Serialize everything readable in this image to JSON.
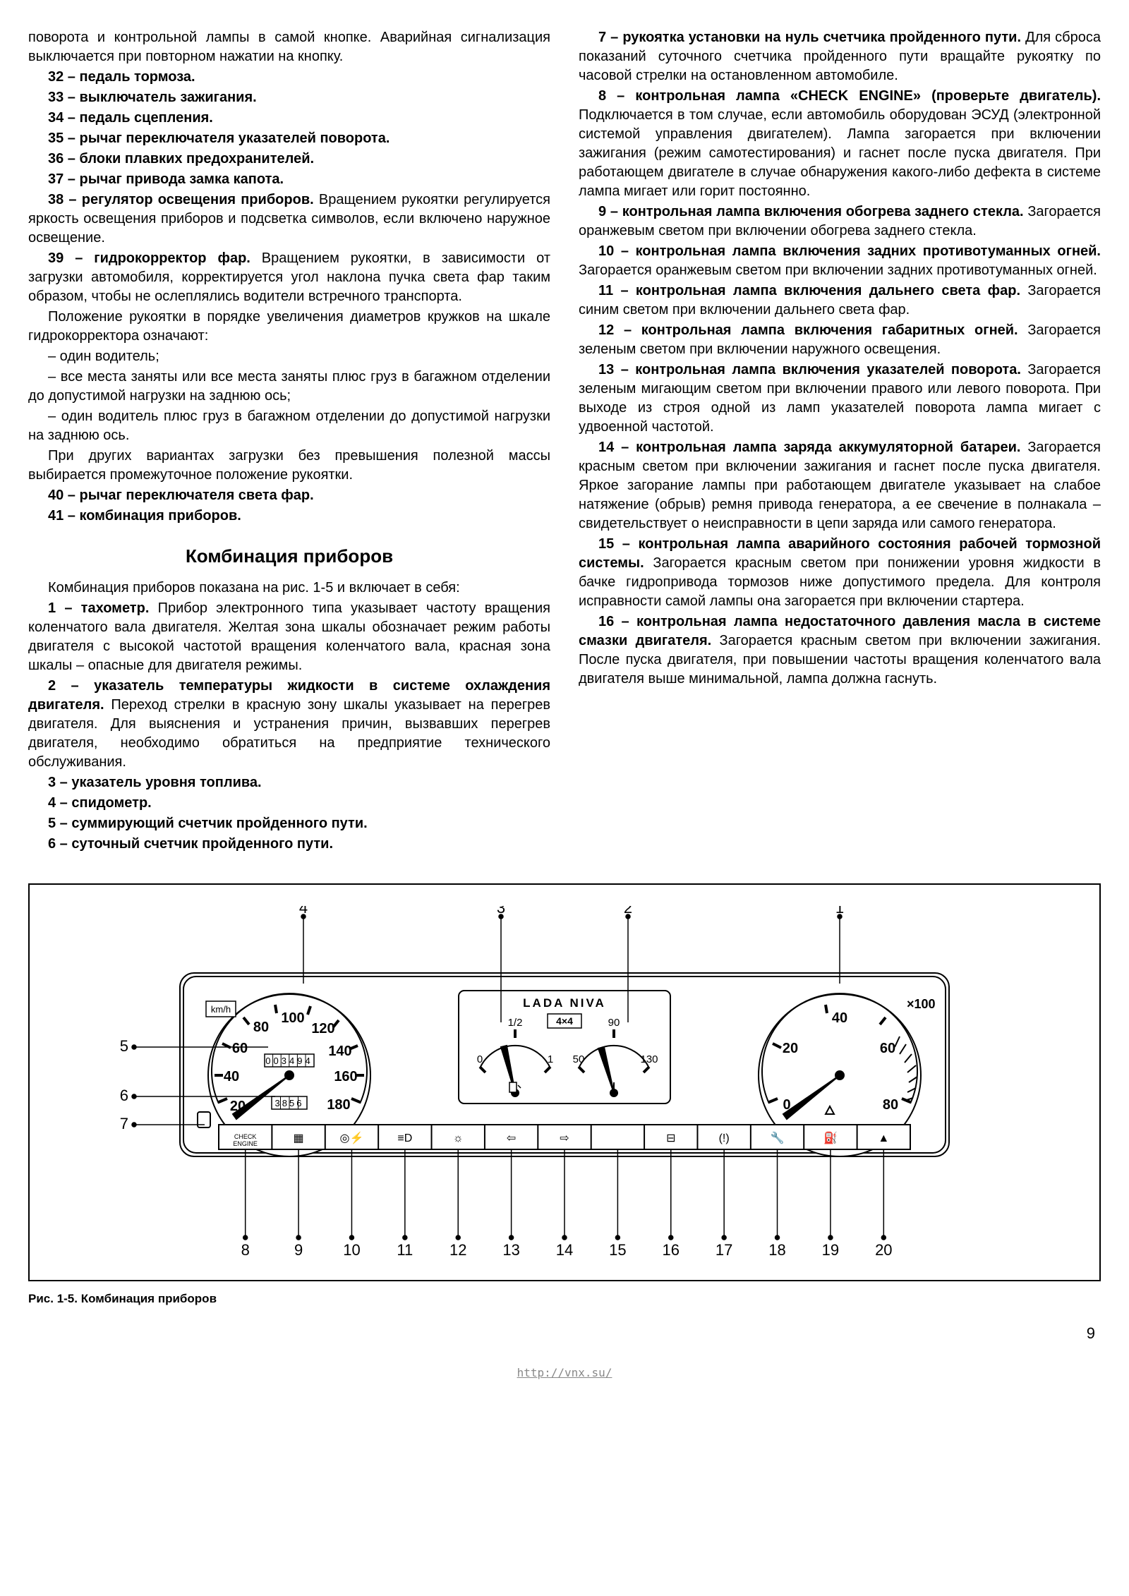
{
  "left_col": {
    "intro_tail": "поворота и контрольной лампы в самой кнопке. Аварийная сигнализация выключается при повторном нажатии на кнопку.",
    "items32_37": [
      "32 – педаль тормоза.",
      "33 – выключатель зажигания.",
      "34 – педаль сцепления.",
      "35 – рычаг переключателя указателей поворота.",
      "36 – блоки плавких предохранителей.",
      "37 – рычаг привода замка капота."
    ],
    "item38_bold": "38 – регулятор освещения приборов.",
    "item38_text": " Вращением рукоятки регулируется яркость освещения приборов и подсветка символов, если включено наружное освещение.",
    "item39_bold": "39 – гидрокорректор фар.",
    "item39_text": " Вращением рукоятки, в зависимости от загрузки автомобиля, корректируется угол наклона пучка света фар таким образом, чтобы не ослеплялись водители встречного транспорта.",
    "item39_p2": "Положение рукоятки в порядке увеличения диаметров кружков на шкале гидрокорректора означают:",
    "item39_l1": "– один водитель;",
    "item39_l2": "– все места заняты или все места заняты плюс груз в багажном отделении до допустимой нагрузки на заднюю ось;",
    "item39_l3": "– один водитель плюс груз в багажном отделении до допустимой нагрузки на заднюю ось.",
    "item39_p3": "При других вариантах загрузки без превышения полезной массы выбирается промежуточное положение рукоятки.",
    "item40": "40 – рычаг переключателя света фар.",
    "item41": "41 – комбинация приборов.",
    "section_title": "Комбинация приборов",
    "section_intro": "Комбинация приборов показана на рис. 1-5 и включает в себя:",
    "n1_bold": "1 – тахометр.",
    "n1_text": " Прибор электронного типа указывает частоту вращения коленчатого вала двигателя. Желтая зона шкалы обозначает режим работы двигателя с высокой частотой вращения коленчатого вала, красная зона шкалы – опасные для двигателя режимы.",
    "n2_bold": "2 – указатель температуры жидкости в системе охлаждения двигателя.",
    "n2_text": " Переход стрелки в красную зону шкалы указывает на перегрев двигателя. Для выяснения и устранения причин, вызвавших перегрев двигателя, необходимо обратиться на предприятие технического обслуживания.",
    "n3": "3 – указатель уровня топлива.",
    "n4": "4 – спидометр.",
    "n5": "5 – суммирующий счетчик пройденного пути.",
    "n6": "6 – суточный счетчик пройденного пути."
  },
  "right_col": {
    "n7_bold": "7 – рукоятка установки на нуль счетчика пройденного пути.",
    "n7_text": " Для сброса показаний суточного счетчика пройденного пути вращайте рукоятку по часовой стрелки на остановленном автомобиле.",
    "n8_bold": "8 – контрольная лампа «CHECK ENGINE» (проверьте двигатель).",
    "n8_text": " Подключается в том случае, если автомобиль оборудован ЭСУД (электронной системой управления двигателем). Лампа загорается при включении зажигания (режим самотестирования) и гаснет после пуска двигателя. При работающем двигателе в случае обнаружения какого-либо дефекта в системе лампа мигает или горит постоянно.",
    "n9_bold": "9 – контрольная лампа включения обогрева заднего стекла.",
    "n9_text": " Загорается оранжевым светом при включении обогрева заднего стекла.",
    "n10_bold": "10 – контрольная лампа включения задних противотуманных огней.",
    "n10_text": " Загорается оранжевым светом при включении задних противотуманных огней.",
    "n11_bold": "11 – контрольная лампа включения дальнего света фар.",
    "n11_text": " Загорается синим светом при включении дальнего света фар.",
    "n12_bold": "12 – контрольная лампа включения габаритных огней.",
    "n12_text": " Загорается зеленым светом при включении наружного освещения.",
    "n13_bold": "13 – контрольная лампа включения указателей поворота.",
    "n13_text": " Загорается зеленым мигающим светом при включении правого или левого поворота. При выходе из строя одной из ламп указателей поворота лампа мигает с удвоенной частотой.",
    "n14_bold": "14 – контрольная лампа заряда аккумуляторной батареи.",
    "n14_text": " Загорается красным светом при включении зажигания и гаснет после пуска двигателя. Яркое загорание лампы при работающем двигателе указывает на слабое натяжение (обрыв) ремня привода генератора, а ее свечение в полнакала – свидетельствует о неисправности в цепи заряда или самого генератора.",
    "n15_bold": "15 – контрольная лампа аварийного состояния рабочей тормозной системы.",
    "n15_text": " Загорается красным светом при понижении уровня жидкости в бачке гидропривода тормозов ниже допустимого предела. Для контроля исправности самой лампы она загорается при включении стартера.",
    "n16_bold": "16 – контрольная лампа недостаточного давления масла в системе смазки двигателя.",
    "n16_text": " Загорается красным светом при включении зажигания. После пуска двигателя, при повышении частоты вращения коленчатого вала двигателя выше минимальной, лампа должна гаснуть."
  },
  "figure": {
    "caption": "Рис. 1-5. Комбинация приборов",
    "callouts_top": [
      "4",
      "3",
      "2",
      "1"
    ],
    "callouts_left": [
      "5",
      "6",
      "7"
    ],
    "callouts_bottom": [
      "8",
      "9",
      "10",
      "11",
      "12",
      "13",
      "14",
      "15",
      "16",
      "17",
      "18",
      "19",
      "20"
    ],
    "speedo_unit": "km/h",
    "speedo_vals": [
      "20",
      "40",
      "60",
      "80",
      "100",
      "120",
      "140",
      "160",
      "180"
    ],
    "odo1": "003494",
    "odo2": "3856",
    "brand": "LADA  NIVA",
    "drive": "4×4",
    "fuel_vals": [
      "0",
      "1/2",
      "1"
    ],
    "temp_vals": [
      "50",
      "90",
      "130"
    ],
    "tach_vals": [
      "0",
      "20",
      "40",
      "60",
      "80"
    ],
    "tach_unit": "×100",
    "check": "CHECK\nENGINE",
    "colors": {
      "line": "#000000",
      "fill_bg": "#ffffff"
    }
  },
  "page_number": "9",
  "url": "http://vnx.su/"
}
